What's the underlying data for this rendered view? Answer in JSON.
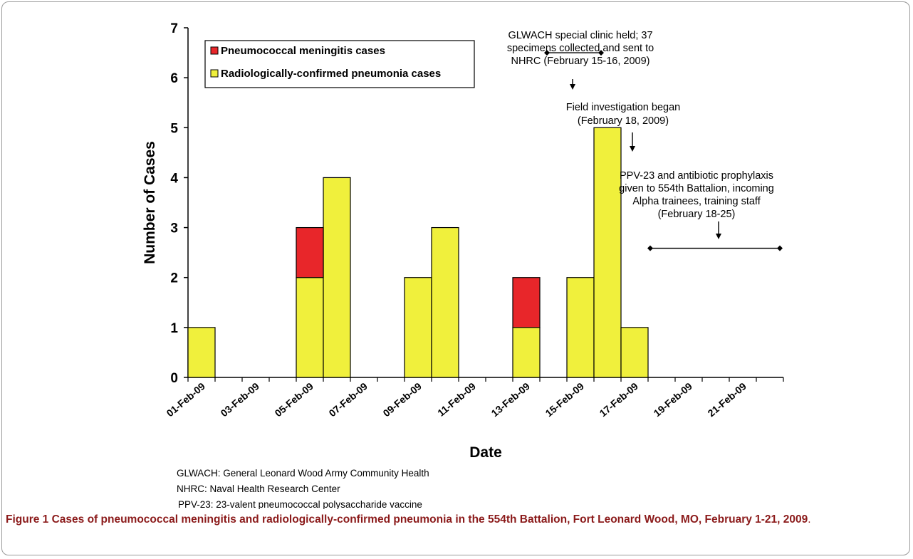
{
  "chart_data": {
    "type": "bar",
    "stacked": true,
    "xlabel": "Date",
    "ylabel": "Number of Cases",
    "ylim": [
      0,
      7
    ],
    "yticks": [
      0,
      1,
      2,
      3,
      4,
      5,
      6,
      7
    ],
    "tick_labels": [
      "01-Feb-09",
      "03-Feb-09",
      "05-Feb-09",
      "07-Feb-09",
      "09-Feb-09",
      "11-Feb-09",
      "13-Feb-09",
      "15-Feb-09",
      "17-Feb-09",
      "19-Feb-09",
      "21-Feb-09"
    ],
    "x": [
      "01-Feb-09",
      "02-Feb-09",
      "03-Feb-09",
      "04-Feb-09",
      "05-Feb-09",
      "06-Feb-09",
      "07-Feb-09",
      "08-Feb-09",
      "09-Feb-09",
      "10-Feb-09",
      "11-Feb-09",
      "12-Feb-09",
      "13-Feb-09",
      "14-Feb-09",
      "15-Feb-09",
      "16-Feb-09",
      "17-Feb-09",
      "18-Feb-09",
      "19-Feb-09",
      "20-Feb-09",
      "21-Feb-09",
      "22-Feb-09"
    ],
    "series": [
      {
        "name": "Radiologically-confirmed pneumonia cases",
        "color": "#f0f03c",
        "values": [
          1,
          0,
          0,
          0,
          2,
          4,
          0,
          0,
          2,
          3,
          0,
          0,
          1,
          0,
          2,
          5,
          1,
          0,
          0,
          0,
          0,
          0
        ]
      },
      {
        "name": "Pneumococcal meningitis cases",
        "color": "#e8262a",
        "values": [
          0,
          0,
          0,
          0,
          1,
          0,
          0,
          0,
          0,
          0,
          0,
          0,
          1,
          0,
          0,
          0,
          0,
          0,
          0,
          0,
          0,
          0
        ]
      }
    ],
    "legend_position": "top-left",
    "grid": false,
    "annotations": [
      {
        "lines": [
          "GLWACH special clinic held; 37",
          "specimens collected and sent to",
          "NHRC (February 15-16, 2009)"
        ],
        "range": [
          "14-Feb-09",
          "16-Feb-09"
        ],
        "range_y": 6.5,
        "arrow_y": [
          6.15,
          6.1
        ],
        "arrow_at": "15-Feb-09"
      },
      {
        "lines": [
          "Field investigation began",
          "(February 18, 2009)"
        ],
        "arrow_at": "17-Feb-09",
        "arrow_y": [
          5.2,
          4.8
        ]
      },
      {
        "lines": [
          "PPV-23 and antibiotic prophylaxis",
          "given to 554th Battalion, incoming",
          "Alpha trainees, training staff",
          "(February 18-25)"
        ],
        "range": [
          "17-Feb-09",
          "22-Feb-09"
        ],
        "range_y": 2.6,
        "arrow_at": "20-Feb-09",
        "arrow_y": [
          3.0,
          2.65
        ]
      }
    ],
    "abbreviations": [
      "GLWACH:  General Leonard Wood Army Community Health",
      "NHRC:  Naval Health Research Center",
      "PPV-23:  23-valent pneumococcal polysaccharide vaccine"
    ]
  },
  "caption": {
    "label": "Figure 1",
    "text": "Cases of pneumococcal meningitis and radiologically-confirmed pneumonia in the 554th Battalion, Fort Leonard Wood, MO, February 1-21, 2009",
    "end": "."
  }
}
